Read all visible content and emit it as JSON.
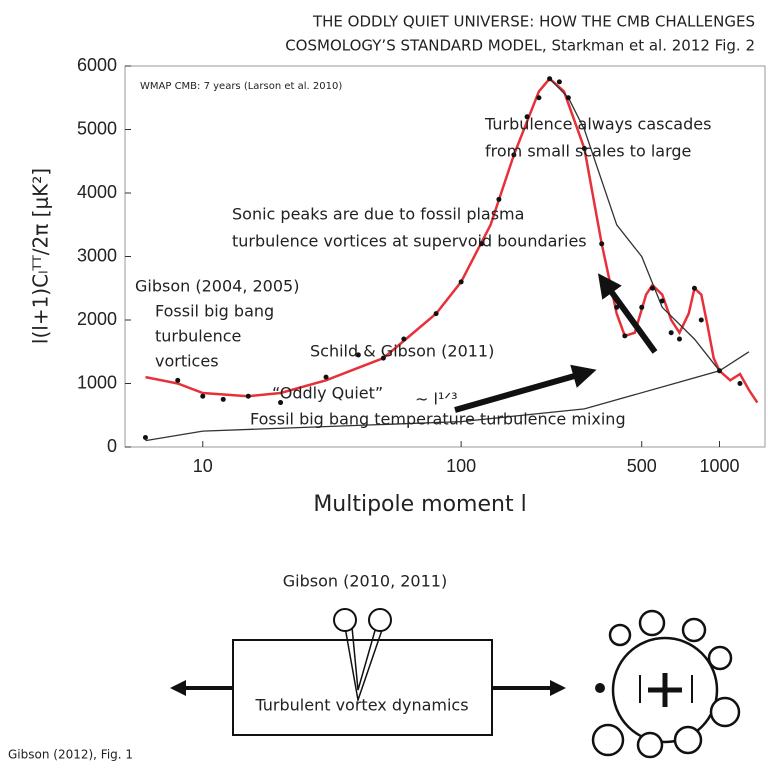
{
  "chart_data": {
    "type": "line",
    "title": [
      "THE ODDLY QUIET UNIVERSE: HOW THE CMB CHALLENGES",
      "COSMOLOGY’S STANDARD MODEL,  Starkman et al. 2012 Fig. 2"
    ],
    "subtitle": "WMAP CMB: 7 years (Larson et al. 2010)",
    "y_label": "l(l+1)Cₗᵀᵀ/2π [μK²]",
    "x_label": "Multipole moment  l",
    "x_scale": "log",
    "xlim": [
      5,
      1500
    ],
    "xticks": [
      10,
      100,
      500,
      1000
    ],
    "ylim": [
      0,
      6000
    ],
    "yticks": [
      0,
      1000,
      2000,
      3000,
      4000,
      5000,
      6000
    ],
    "series": [
      {
        "color": "#e8303a",
        "marker": false,
        "x": [
          6,
          8,
          10,
          15,
          20,
          30,
          50,
          80,
          100,
          130,
          160,
          200,
          220,
          250,
          300,
          350,
          400,
          430,
          470,
          520,
          550,
          600,
          650,
          700,
          760,
          800,
          850,
          900,
          950,
          1000,
          1100,
          1200,
          1300,
          1400
        ],
        "values": [
          1100,
          1000,
          850,
          800,
          850,
          1050,
          1400,
          2100,
          2600,
          3500,
          4600,
          5600,
          5800,
          5600,
          4700,
          3200,
          2100,
          1750,
          1800,
          2400,
          2550,
          2400,
          2000,
          1800,
          2100,
          2500,
          2400,
          1900,
          1400,
          1200,
          1050,
          1150,
          900,
          700
        ]
      },
      {
        "color": "#333333",
        "marker": false,
        "x": [
          220,
          260,
          300,
          400,
          500,
          600,
          800,
          1000
        ],
        "values": [
          5800,
          5500,
          5000,
          3500,
          3000,
          2200,
          1700,
          1200
        ]
      },
      {
        "color": "#333333",
        "marker": false,
        "x": [
          6,
          10,
          100,
          300,
          1000,
          1300
        ],
        "values": [
          100,
          250,
          400,
          600,
          1200,
          1500
        ]
      },
      {
        "color": "#111111",
        "marker": true,
        "x": [
          6,
          8,
          10,
          12,
          15,
          20,
          30,
          40,
          50,
          60,
          80,
          100,
          120,
          140,
          160,
          180,
          200,
          220,
          240,
          260,
          300,
          350,
          400,
          430,
          500,
          550,
          600,
          650,
          700,
          800,
          850,
          1000,
          1200
        ],
        "values": [
          150,
          1050,
          800,
          750,
          800,
          700,
          1100,
          1450,
          1400,
          1700,
          2100,
          2600,
          3200,
          3900,
          4600,
          5200,
          5500,
          5800,
          5750,
          5500,
          4700,
          3200,
          2200,
          1750,
          2200,
          2500,
          2300,
          1800,
          1700,
          2500,
          2000,
          1200,
          1000
        ]
      }
    ],
    "annotations": [
      "Turbulence always cascades",
      "from small scales to large",
      "Sonic peaks are due to fossil plasma",
      "turbulence vortices at supervoid boundaries",
      "Gibson (2004, 2005)",
      "Fossil big bang",
      "turbulence",
      "vortices",
      "Schild & Gibson (2011)",
      "“Oddly Quiet”",
      "~ l¹ᐟ³",
      "Fossil big bang temperature turbulence mixing"
    ]
  },
  "diagram": {
    "title": "Gibson (2010, 2011)",
    "box_label": "Turbulent vortex dynamics",
    "caption": "Gibson (2012), Fig. 1"
  }
}
